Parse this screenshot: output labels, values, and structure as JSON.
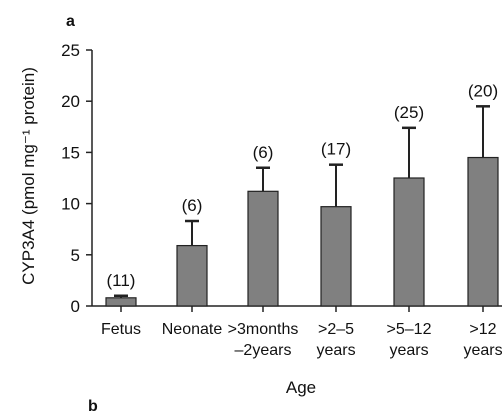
{
  "chart_data": {
    "type": "bar",
    "panel_label": "a",
    "next_panel_label": "b",
    "xlabel": "Age",
    "ylabel": "CYP3A4 (pmol mg⁻¹ protein)",
    "ylim": [
      0,
      25
    ],
    "yticks": [
      "0",
      "5",
      "10",
      "15",
      "20",
      "25"
    ],
    "categories": [
      [
        "Fetus"
      ],
      [
        "Neonate"
      ],
      [
        ">3months",
        "–2years"
      ],
      [
        ">2–5",
        "years"
      ],
      [
        ">5–12",
        "years"
      ],
      [
        ">12",
        "years"
      ]
    ],
    "values": [
      0.8,
      5.9,
      11.2,
      9.7,
      12.5,
      14.5
    ],
    "error_upper": [
      1.0,
      8.3,
      13.5,
      13.8,
      17.4,
      19.5
    ],
    "n_labels": [
      "(11)",
      "(6)",
      "(6)",
      "(17)",
      "(25)",
      "(20)"
    ],
    "bar_color": "#808080",
    "grid": false
  }
}
